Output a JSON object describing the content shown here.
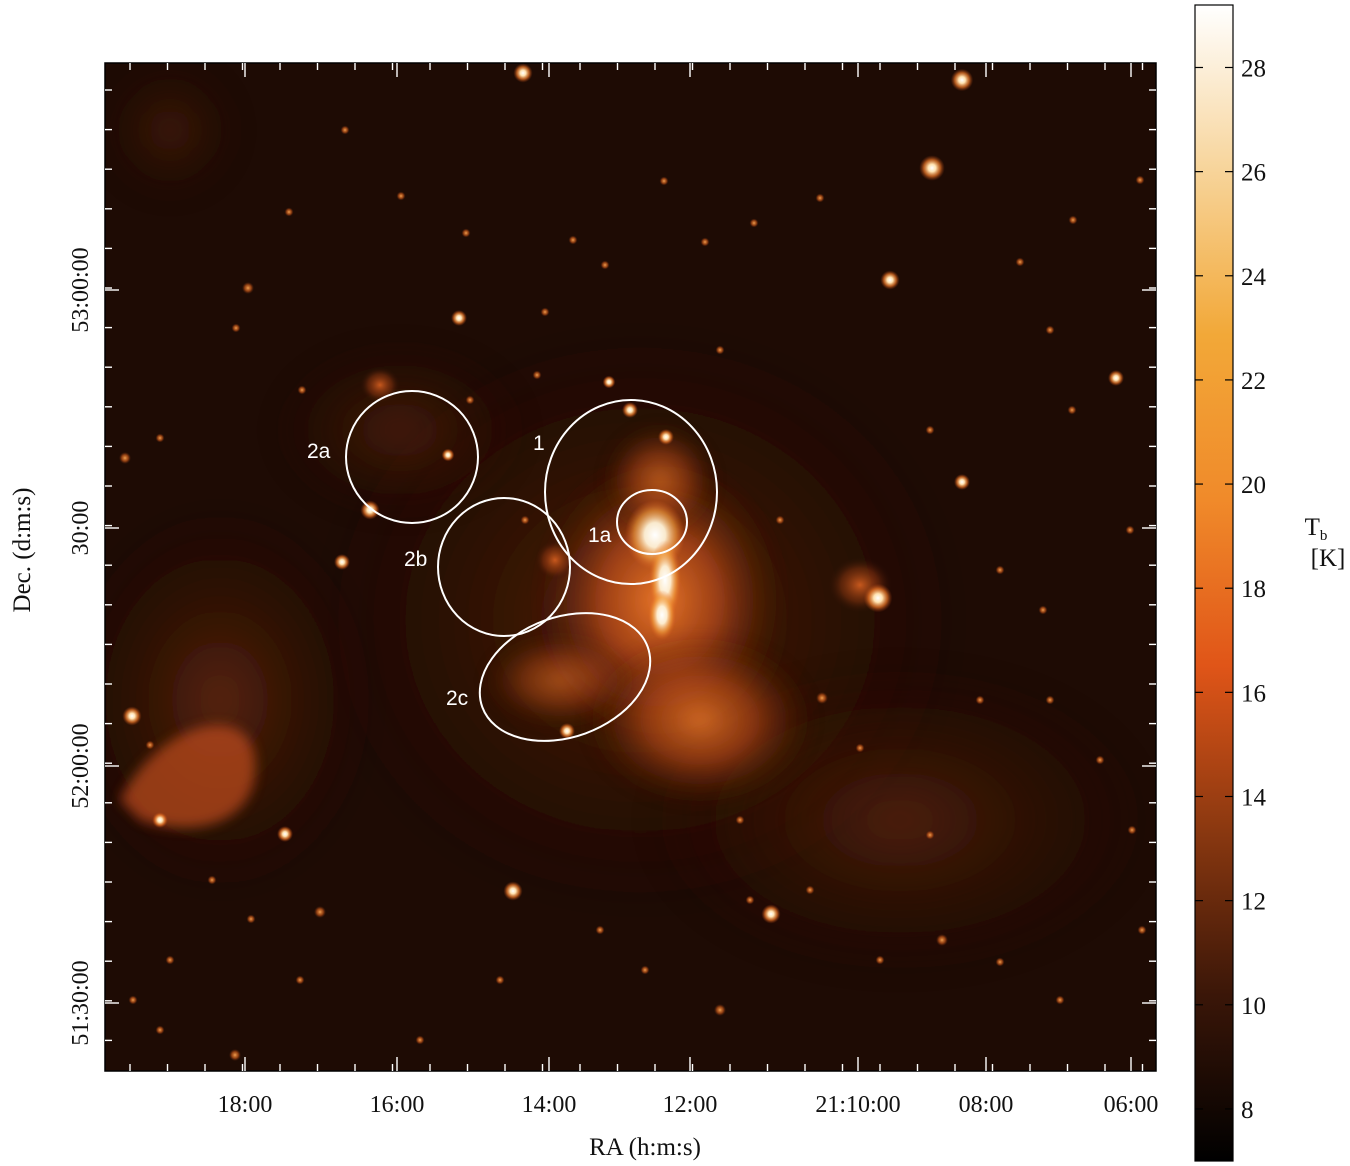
{
  "axes": {
    "xlabel": "RA (h:m:s)",
    "ylabel": "Dec. (d:m:s)",
    "x_ticks": [
      "18:00",
      "16:00",
      "14:00",
      "12:00",
      "21:10:00",
      "08:00",
      "06:00"
    ],
    "y_ticks": [
      "53:00:00",
      "30:00",
      "52:00:00",
      "51:30:00"
    ]
  },
  "colorbar": {
    "label_main": "T",
    "label_sub": "b",
    "label_unit": "[K]",
    "ticks": [
      "28",
      "26",
      "24",
      "22",
      "20",
      "18",
      "16",
      "14",
      "12",
      "10",
      "8"
    ],
    "range": [
      7,
      29.2
    ],
    "colors": [
      "#000000",
      "#3a1608",
      "#8a3810",
      "#e05518",
      "#f08a2a",
      "#f2a838",
      "#f7d49a",
      "#ffffff"
    ]
  },
  "regions": [
    {
      "id": "1",
      "label": "1"
    },
    {
      "id": "1a",
      "label": "1a"
    },
    {
      "id": "2a",
      "label": "2a"
    },
    {
      "id": "2b",
      "label": "2b"
    },
    {
      "id": "2c",
      "label": "2c"
    }
  ]
}
